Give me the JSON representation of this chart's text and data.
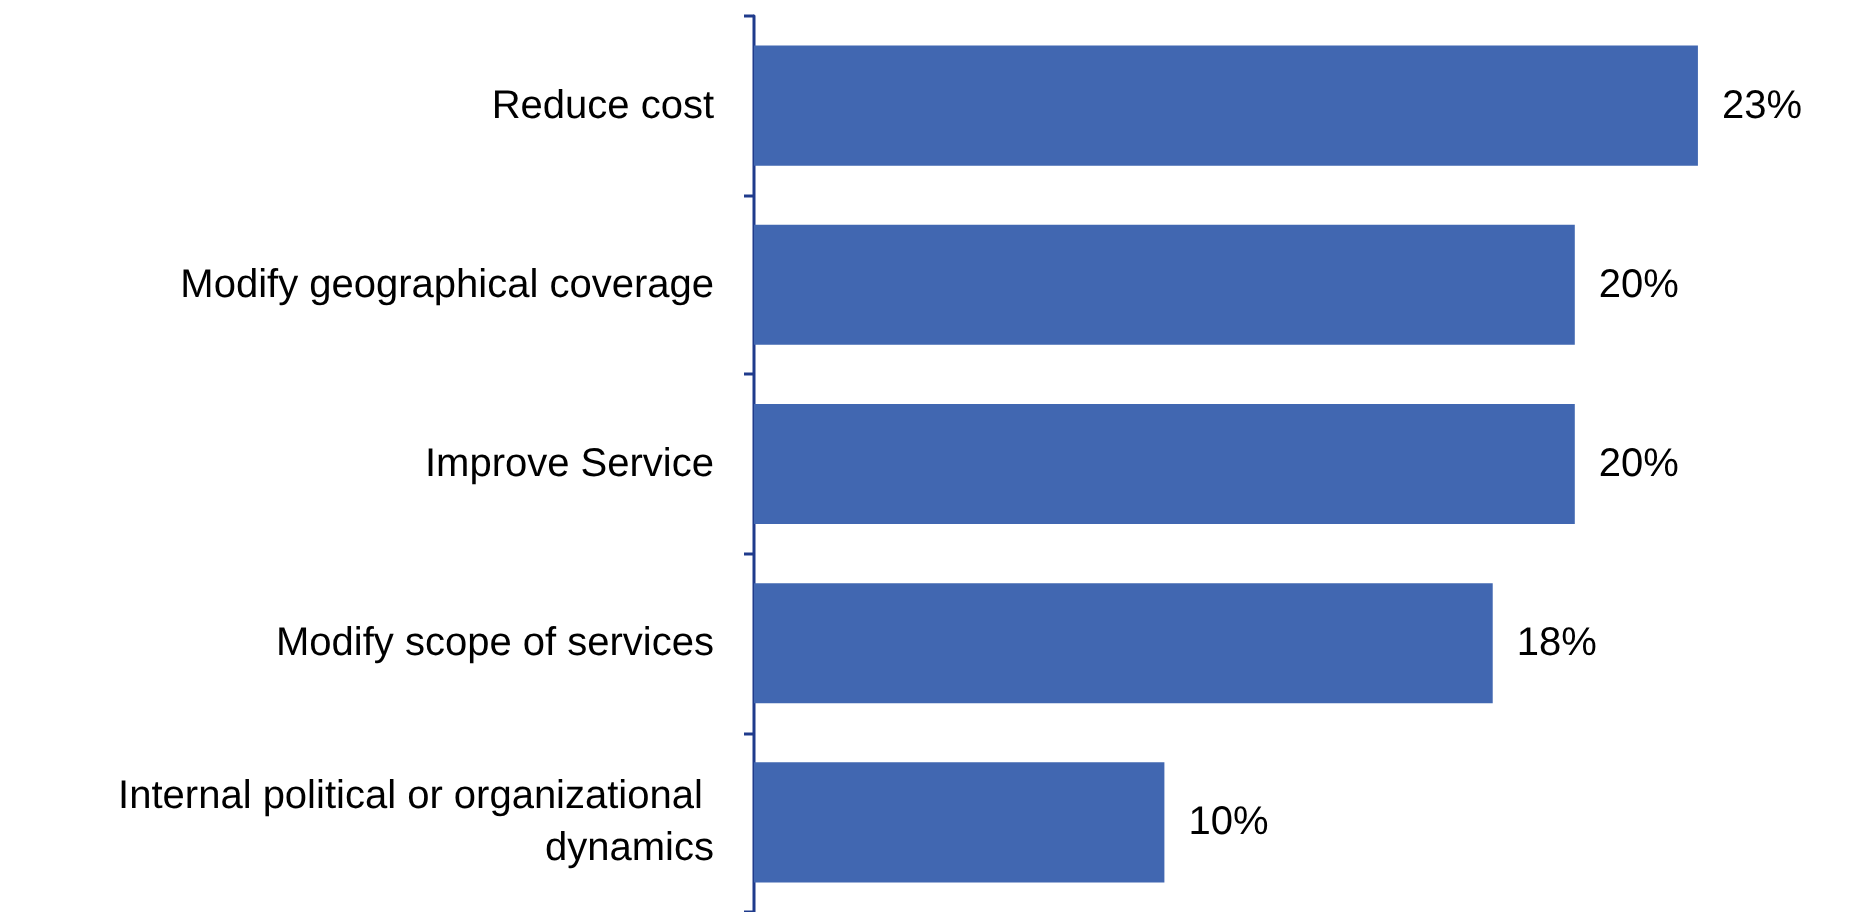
{
  "chart_data": {
    "type": "bar",
    "orientation": "horizontal",
    "categories": [
      "Reduce cost",
      "Modify geographical coverage",
      "Improve Service",
      "Modify scope of services",
      "Internal political or organizational dynamics"
    ],
    "values": [
      23,
      20,
      20,
      18,
      10
    ],
    "value_labels": [
      "23%",
      "20%",
      "20%",
      "18%",
      "10%"
    ],
    "color": "#4167b1"
  }
}
